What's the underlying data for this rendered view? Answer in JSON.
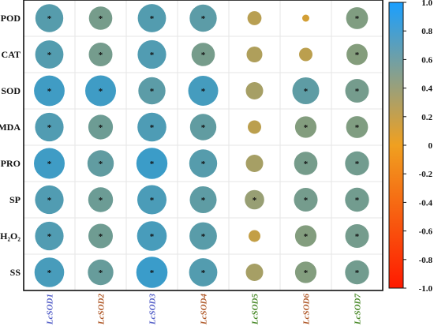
{
  "chart_data": {
    "type": "heatmap",
    "rows": [
      "POD",
      "CAT",
      "SOD",
      "MDA",
      "PRO",
      "SP",
      "H₂O₂",
      "SS"
    ],
    "columns": [
      "LcSOD1",
      "LcSOD2",
      "LcSOD3",
      "LcSOD4",
      "LcSOD5",
      "LcSOD6",
      "LcSOD7"
    ],
    "column_label_colors": [
      "#5560c8",
      "#b05a2a",
      "#5560c8",
      "#b05a2a",
      "#4a8a2a",
      "#b05a2a",
      "#4a8a2a"
    ],
    "values": [
      [
        0.78,
        0.55,
        0.8,
        0.74,
        0.2,
        0.05,
        0.48
      ],
      [
        0.8,
        0.56,
        0.82,
        0.55,
        0.25,
        0.18,
        0.45
      ],
      [
        0.94,
        0.95,
        0.74,
        0.9,
        0.3,
        0.72,
        0.56
      ],
      [
        0.82,
        0.61,
        0.84,
        0.7,
        0.18,
        0.46,
        0.48
      ],
      [
        0.95,
        0.7,
        0.97,
        0.78,
        0.3,
        0.55,
        0.58
      ],
      [
        0.82,
        0.62,
        0.86,
        0.72,
        0.38,
        0.56,
        0.58
      ],
      [
        0.82,
        0.6,
        0.88,
        0.76,
        0.14,
        0.46,
        0.56
      ],
      [
        0.88,
        0.66,
        0.98,
        0.8,
        0.3,
        0.46,
        0.58
      ]
    ],
    "significant": [
      [
        true,
        true,
        true,
        true,
        false,
        false,
        true
      ],
      [
        true,
        true,
        true,
        true,
        false,
        false,
        true
      ],
      [
        true,
        true,
        true,
        true,
        false,
        true,
        true
      ],
      [
        true,
        true,
        true,
        true,
        false,
        true,
        true
      ],
      [
        true,
        true,
        true,
        true,
        false,
        true,
        true
      ],
      [
        true,
        true,
        true,
        true,
        true,
        true,
        true
      ],
      [
        true,
        true,
        true,
        true,
        false,
        true,
        true
      ],
      [
        true,
        true,
        true,
        true,
        false,
        true,
        true
      ]
    ],
    "significance_marker": "*",
    "colorbar": {
      "range": [
        -1.0,
        1.0
      ],
      "ticks": [
        "1.0",
        "0.8",
        "0.6",
        "0.4",
        "0.2",
        "0",
        "-0.2",
        "-0.4",
        "-0.6",
        "-0.8",
        "-1.0"
      ],
      "colors": [
        "#ff1a00",
        "#f0a020",
        "#1a9fff"
      ]
    },
    "grid": true,
    "legend_placement": "right"
  }
}
